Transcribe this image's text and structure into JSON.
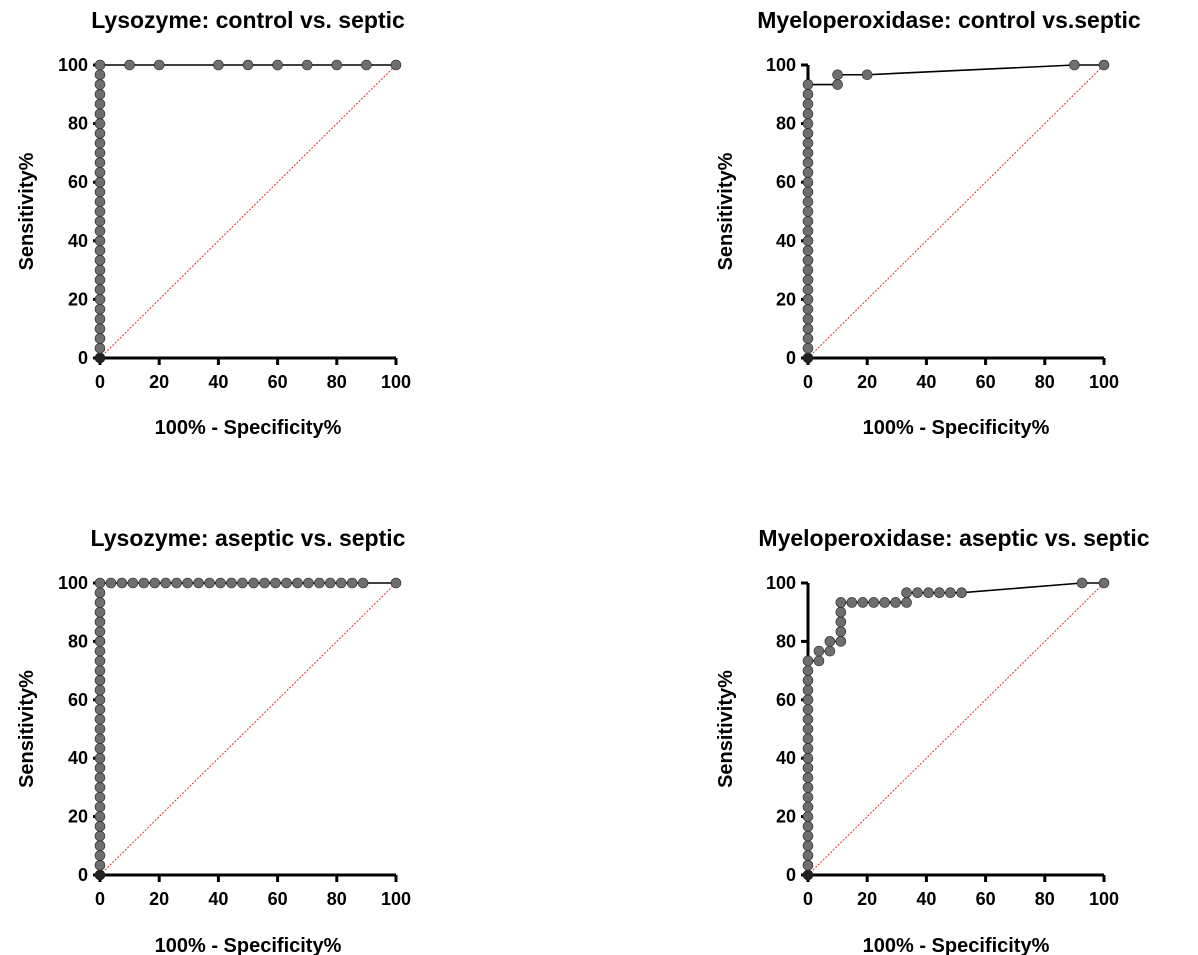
{
  "colors": {
    "curve": "#000000",
    "marker": "#6e6e6e",
    "marker_dark": "#222222",
    "reference": "#e03030"
  },
  "chart_data": [
    {
      "type": "line",
      "title": "Lysozyme: control vs. septic",
      "xlabel": "100% - Specificity%",
      "ylabel": "Sensitivity%",
      "xlim": [
        0,
        100
      ],
      "ylim": [
        0,
        100
      ],
      "xticks": [
        "0",
        "20",
        "40",
        "60",
        "80",
        "100"
      ],
      "yticks": [
        "0",
        "20",
        "40",
        "60",
        "80",
        "100"
      ],
      "reference_line": [
        [
          0,
          0
        ],
        [
          100,
          100
        ]
      ],
      "series": [
        {
          "x": [
            0,
            0,
            0,
            0,
            0,
            0,
            0,
            0,
            0,
            0,
            0,
            0,
            0,
            0,
            0,
            0,
            0,
            0,
            0,
            0,
            0,
            0,
            0,
            0,
            0,
            0,
            0,
            0,
            0,
            0,
            0,
            10,
            20,
            40,
            50,
            60,
            70,
            80,
            90,
            100
          ],
          "y": [
            0,
            3.33,
            6.67,
            10,
            13.33,
            16.67,
            20,
            23.33,
            26.67,
            30,
            33.33,
            36.67,
            40,
            43.33,
            46.67,
            50,
            53.33,
            56.67,
            60,
            63.33,
            66.67,
            70,
            73.33,
            76.67,
            80,
            83.33,
            86.67,
            90,
            93.33,
            96.67,
            100,
            100,
            100,
            100,
            100,
            100,
            100,
            100,
            100,
            100
          ]
        }
      ]
    },
    {
      "type": "line",
      "title": "Myeloperoxidase: control vs.septic",
      "xlabel": "100% - Specificity%",
      "ylabel": "Sensitivity%",
      "xlim": [
        0,
        100
      ],
      "ylim": [
        0,
        100
      ],
      "xticks": [
        "0",
        "20",
        "40",
        "60",
        "80",
        "100"
      ],
      "yticks": [
        "0",
        "20",
        "40",
        "60",
        "80",
        "100"
      ],
      "reference_line": [
        [
          0,
          0
        ],
        [
          100,
          100
        ]
      ],
      "series": [
        {
          "x": [
            0,
            0,
            0,
            0,
            0,
            0,
            0,
            0,
            0,
            0,
            0,
            0,
            0,
            0,
            0,
            0,
            0,
            0,
            0,
            0,
            0,
            0,
            0,
            0,
            0,
            0,
            0,
            0,
            0,
            10,
            10,
            20,
            90,
            100
          ],
          "y": [
            0,
            3.33,
            6.67,
            10,
            13.33,
            16.67,
            20,
            23.33,
            26.67,
            30,
            33.33,
            36.67,
            40,
            43.33,
            46.67,
            50,
            53.33,
            56.67,
            60,
            63.33,
            66.67,
            70,
            73.33,
            76.67,
            80,
            83.33,
            86.67,
            90,
            93.33,
            93.33,
            96.67,
            96.67,
            100,
            100
          ]
        }
      ]
    },
    {
      "type": "line",
      "title": "Lysozyme: aseptic vs. septic",
      "xlabel": "100% - Specificity%",
      "ylabel": "Sensitivity%",
      "xlim": [
        0,
        100
      ],
      "ylim": [
        0,
        100
      ],
      "xticks": [
        "0",
        "20",
        "40",
        "60",
        "80",
        "100"
      ],
      "yticks": [
        "0",
        "20",
        "40",
        "60",
        "80",
        "100"
      ],
      "reference_line": [
        [
          0,
          0
        ],
        [
          100,
          100
        ]
      ],
      "series": [
        {
          "x": [
            0,
            0,
            0,
            0,
            0,
            0,
            0,
            0,
            0,
            0,
            0,
            0,
            0,
            0,
            0,
            0,
            0,
            0,
            0,
            0,
            0,
            0,
            0,
            0,
            0,
            0,
            0,
            0,
            0,
            0,
            0,
            3.7,
            7.4,
            11.1,
            14.8,
            18.5,
            22.2,
            25.9,
            29.6,
            33.3,
            37,
            40.7,
            44.4,
            48.1,
            51.9,
            55.6,
            59.3,
            63,
            66.7,
            70.4,
            74.1,
            77.8,
            81.5,
            85.2,
            88.9,
            100
          ],
          "y": [
            0,
            3.33,
            6.67,
            10,
            13.33,
            16.67,
            20,
            23.33,
            26.67,
            30,
            33.33,
            36.67,
            40,
            43.33,
            46.67,
            50,
            53.33,
            56.67,
            60,
            63.33,
            66.67,
            70,
            73.33,
            76.67,
            80,
            83.33,
            86.67,
            90,
            93.33,
            96.67,
            100,
            100,
            100,
            100,
            100,
            100,
            100,
            100,
            100,
            100,
            100,
            100,
            100,
            100,
            100,
            100,
            100,
            100,
            100,
            100,
            100,
            100,
            100,
            100,
            100,
            100
          ]
        }
      ]
    },
    {
      "type": "line",
      "title": "Myeloperoxidase: aseptic vs. septic",
      "xlabel": "100% - Specificity%",
      "ylabel": "Sensitivity%",
      "xlim": [
        0,
        100
      ],
      "ylim": [
        0,
        100
      ],
      "xticks": [
        "0",
        "20",
        "40",
        "60",
        "80",
        "100"
      ],
      "yticks": [
        "0",
        "20",
        "40",
        "60",
        "80",
        "100"
      ],
      "reference_line": [
        [
          0,
          0
        ],
        [
          100,
          100
        ]
      ],
      "series": [
        {
          "x": [
            0,
            0,
            0,
            0,
            0,
            0,
            0,
            0,
            0,
            0,
            0,
            0,
            0,
            0,
            0,
            0,
            0,
            0,
            0,
            0,
            0,
            0,
            0,
            3.7,
            3.7,
            7.4,
            7.4,
            11.1,
            11.1,
            11.1,
            11.1,
            11.1,
            14.8,
            18.5,
            22.2,
            25.9,
            29.6,
            33.3,
            33.3,
            37,
            40.7,
            44.4,
            48.1,
            51.9,
            92.6,
            100
          ],
          "y": [
            0,
            3.33,
            6.67,
            10,
            13.33,
            16.67,
            20,
            23.33,
            26.67,
            30,
            33.33,
            36.67,
            40,
            43.33,
            46.67,
            50,
            53.33,
            56.67,
            60,
            63.33,
            66.67,
            70,
            73.33,
            73.33,
            76.67,
            76.67,
            80,
            80,
            83.33,
            86.67,
            90,
            93.33,
            93.33,
            93.33,
            93.33,
            93.33,
            93.33,
            93.33,
            96.67,
            96.67,
            96.67,
            96.67,
            96.67,
            96.67,
            100,
            100
          ]
        }
      ]
    }
  ]
}
